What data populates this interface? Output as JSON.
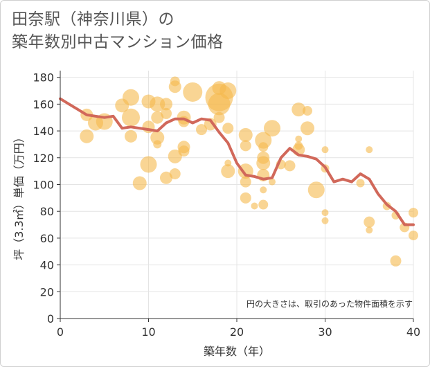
{
  "page": {
    "title_line1": "田奈駅（神奈川県）の",
    "title_line2": "築年数別中古マンション価格"
  },
  "chart_data": {
    "type": "scatter",
    "xlabel": "築年数（年）",
    "ylabel": "坪（3.3㎡）単価（万円）",
    "note": "円の大きさは、取引のあった物件面積を示す",
    "xlim": [
      0,
      40
    ],
    "ylim": [
      0,
      185
    ],
    "xticks": [
      0,
      10,
      20,
      30,
      40
    ],
    "yticks": [
      0,
      20,
      40,
      60,
      80,
      100,
      120,
      140,
      160,
      180
    ],
    "grid": true,
    "colors": {
      "bubble": "#f5b94d",
      "line": "#d1685a"
    },
    "bubbles": [
      {
        "x": 3,
        "y": 152,
        "s": 9
      },
      {
        "x": 3,
        "y": 136,
        "s": 10
      },
      {
        "x": 4,
        "y": 146,
        "s": 11
      },
      {
        "x": 5,
        "y": 147,
        "s": 12
      },
      {
        "x": 7,
        "y": 159,
        "s": 10
      },
      {
        "x": 8,
        "y": 165,
        "s": 12
      },
      {
        "x": 8,
        "y": 150,
        "s": 13
      },
      {
        "x": 8,
        "y": 136,
        "s": 9
      },
      {
        "x": 9,
        "y": 101,
        "s": 10
      },
      {
        "x": 10,
        "y": 115,
        "s": 12
      },
      {
        "x": 10,
        "y": 162,
        "s": 10
      },
      {
        "x": 10,
        "y": 143,
        "s": 9
      },
      {
        "x": 11,
        "y": 160,
        "s": 11
      },
      {
        "x": 11,
        "y": 150,
        "s": 9
      },
      {
        "x": 11,
        "y": 135,
        "s": 10
      },
      {
        "x": 11,
        "y": 130,
        "s": 6
      },
      {
        "x": 12,
        "y": 160,
        "s": 9
      },
      {
        "x": 12,
        "y": 153,
        "s": 8
      },
      {
        "x": 12,
        "y": 105,
        "s": 9
      },
      {
        "x": 13,
        "y": 177,
        "s": 7
      },
      {
        "x": 13,
        "y": 173,
        "s": 9
      },
      {
        "x": 13,
        "y": 121,
        "s": 10
      },
      {
        "x": 13,
        "y": 108,
        "s": 8
      },
      {
        "x": 14,
        "y": 150,
        "s": 10
      },
      {
        "x": 14,
        "y": 147,
        "s": 8
      },
      {
        "x": 14,
        "y": 128,
        "s": 9
      },
      {
        "x": 14,
        "y": 125,
        "s": 8
      },
      {
        "x": 15,
        "y": 169,
        "s": 14
      },
      {
        "x": 16,
        "y": 141,
        "s": 8
      },
      {
        "x": 17,
        "y": 145,
        "s": 9
      },
      {
        "x": 18,
        "y": 172,
        "s": 10
      },
      {
        "x": 18,
        "y": 165,
        "s": 20
      },
      {
        "x": 18,
        "y": 160,
        "s": 16
      },
      {
        "x": 18,
        "y": 150,
        "s": 8
      },
      {
        "x": 19,
        "y": 170,
        "s": 12
      },
      {
        "x": 19,
        "y": 142,
        "s": 8
      },
      {
        "x": 19,
        "y": 116,
        "s": 5
      },
      {
        "x": 19,
        "y": 110,
        "s": 10
      },
      {
        "x": 21,
        "y": 137,
        "s": 10
      },
      {
        "x": 21,
        "y": 129,
        "s": 8
      },
      {
        "x": 21,
        "y": 110,
        "s": 11
      },
      {
        "x": 21,
        "y": 102,
        "s": 8
      },
      {
        "x": 21,
        "y": 90,
        "s": 8
      },
      {
        "x": 22,
        "y": 84,
        "s": 5
      },
      {
        "x": 23,
        "y": 133,
        "s": 12
      },
      {
        "x": 23,
        "y": 128,
        "s": 7
      },
      {
        "x": 23,
        "y": 120,
        "s": 9
      },
      {
        "x": 23,
        "y": 116,
        "s": 10
      },
      {
        "x": 23,
        "y": 107,
        "s": 9
      },
      {
        "x": 23,
        "y": 96,
        "s": 5
      },
      {
        "x": 23,
        "y": 85,
        "s": 7
      },
      {
        "x": 24,
        "y": 142,
        "s": 12
      },
      {
        "x": 24,
        "y": 102,
        "s": 5
      },
      {
        "x": 25,
        "y": 115,
        "s": 7
      },
      {
        "x": 26,
        "y": 114,
        "s": 8
      },
      {
        "x": 27,
        "y": 156,
        "s": 10
      },
      {
        "x": 27,
        "y": 134,
        "s": 5
      },
      {
        "x": 27,
        "y": 129,
        "s": 6
      },
      {
        "x": 27,
        "y": 126,
        "s": 9
      },
      {
        "x": 28,
        "y": 155,
        "s": 7
      },
      {
        "x": 28,
        "y": 142,
        "s": 10
      },
      {
        "x": 29,
        "y": 96,
        "s": 12
      },
      {
        "x": 30,
        "y": 126,
        "s": 5
      },
      {
        "x": 30,
        "y": 112,
        "s": 6
      },
      {
        "x": 30,
        "y": 79,
        "s": 5
      },
      {
        "x": 30,
        "y": 73,
        "s": 5
      },
      {
        "x": 34,
        "y": 101,
        "s": 6
      },
      {
        "x": 35,
        "y": 126,
        "s": 5
      },
      {
        "x": 35,
        "y": 72,
        "s": 8
      },
      {
        "x": 35,
        "y": 66,
        "s": 5
      },
      {
        "x": 37,
        "y": 84,
        "s": 6
      },
      {
        "x": 38,
        "y": 77,
        "s": 6
      },
      {
        "x": 38,
        "y": 43,
        "s": 8
      },
      {
        "x": 39,
        "y": 68,
        "s": 7
      },
      {
        "x": 40,
        "y": 79,
        "s": 7
      },
      {
        "x": 40,
        "y": 62,
        "s": 7
      }
    ],
    "trend": {
      "x": [
        0,
        1,
        2,
        3,
        4,
        5,
        6,
        7,
        8,
        9,
        10,
        11,
        12,
        13,
        14,
        15,
        16,
        17,
        18,
        19,
        20,
        21,
        22,
        23,
        24,
        25,
        26,
        27,
        28,
        29,
        30,
        31,
        32,
        33,
        34,
        35,
        36,
        37,
        38,
        39,
        40
      ],
      "y": [
        164,
        160,
        156,
        152,
        151,
        150,
        151,
        142,
        143,
        142,
        141,
        140,
        146,
        149,
        149,
        146,
        149,
        148,
        139,
        131,
        116,
        107,
        106,
        104,
        105,
        120,
        127,
        122,
        121,
        119,
        113,
        102,
        104,
        102,
        108,
        104,
        93,
        85,
        80,
        70,
        70
      ]
    }
  }
}
